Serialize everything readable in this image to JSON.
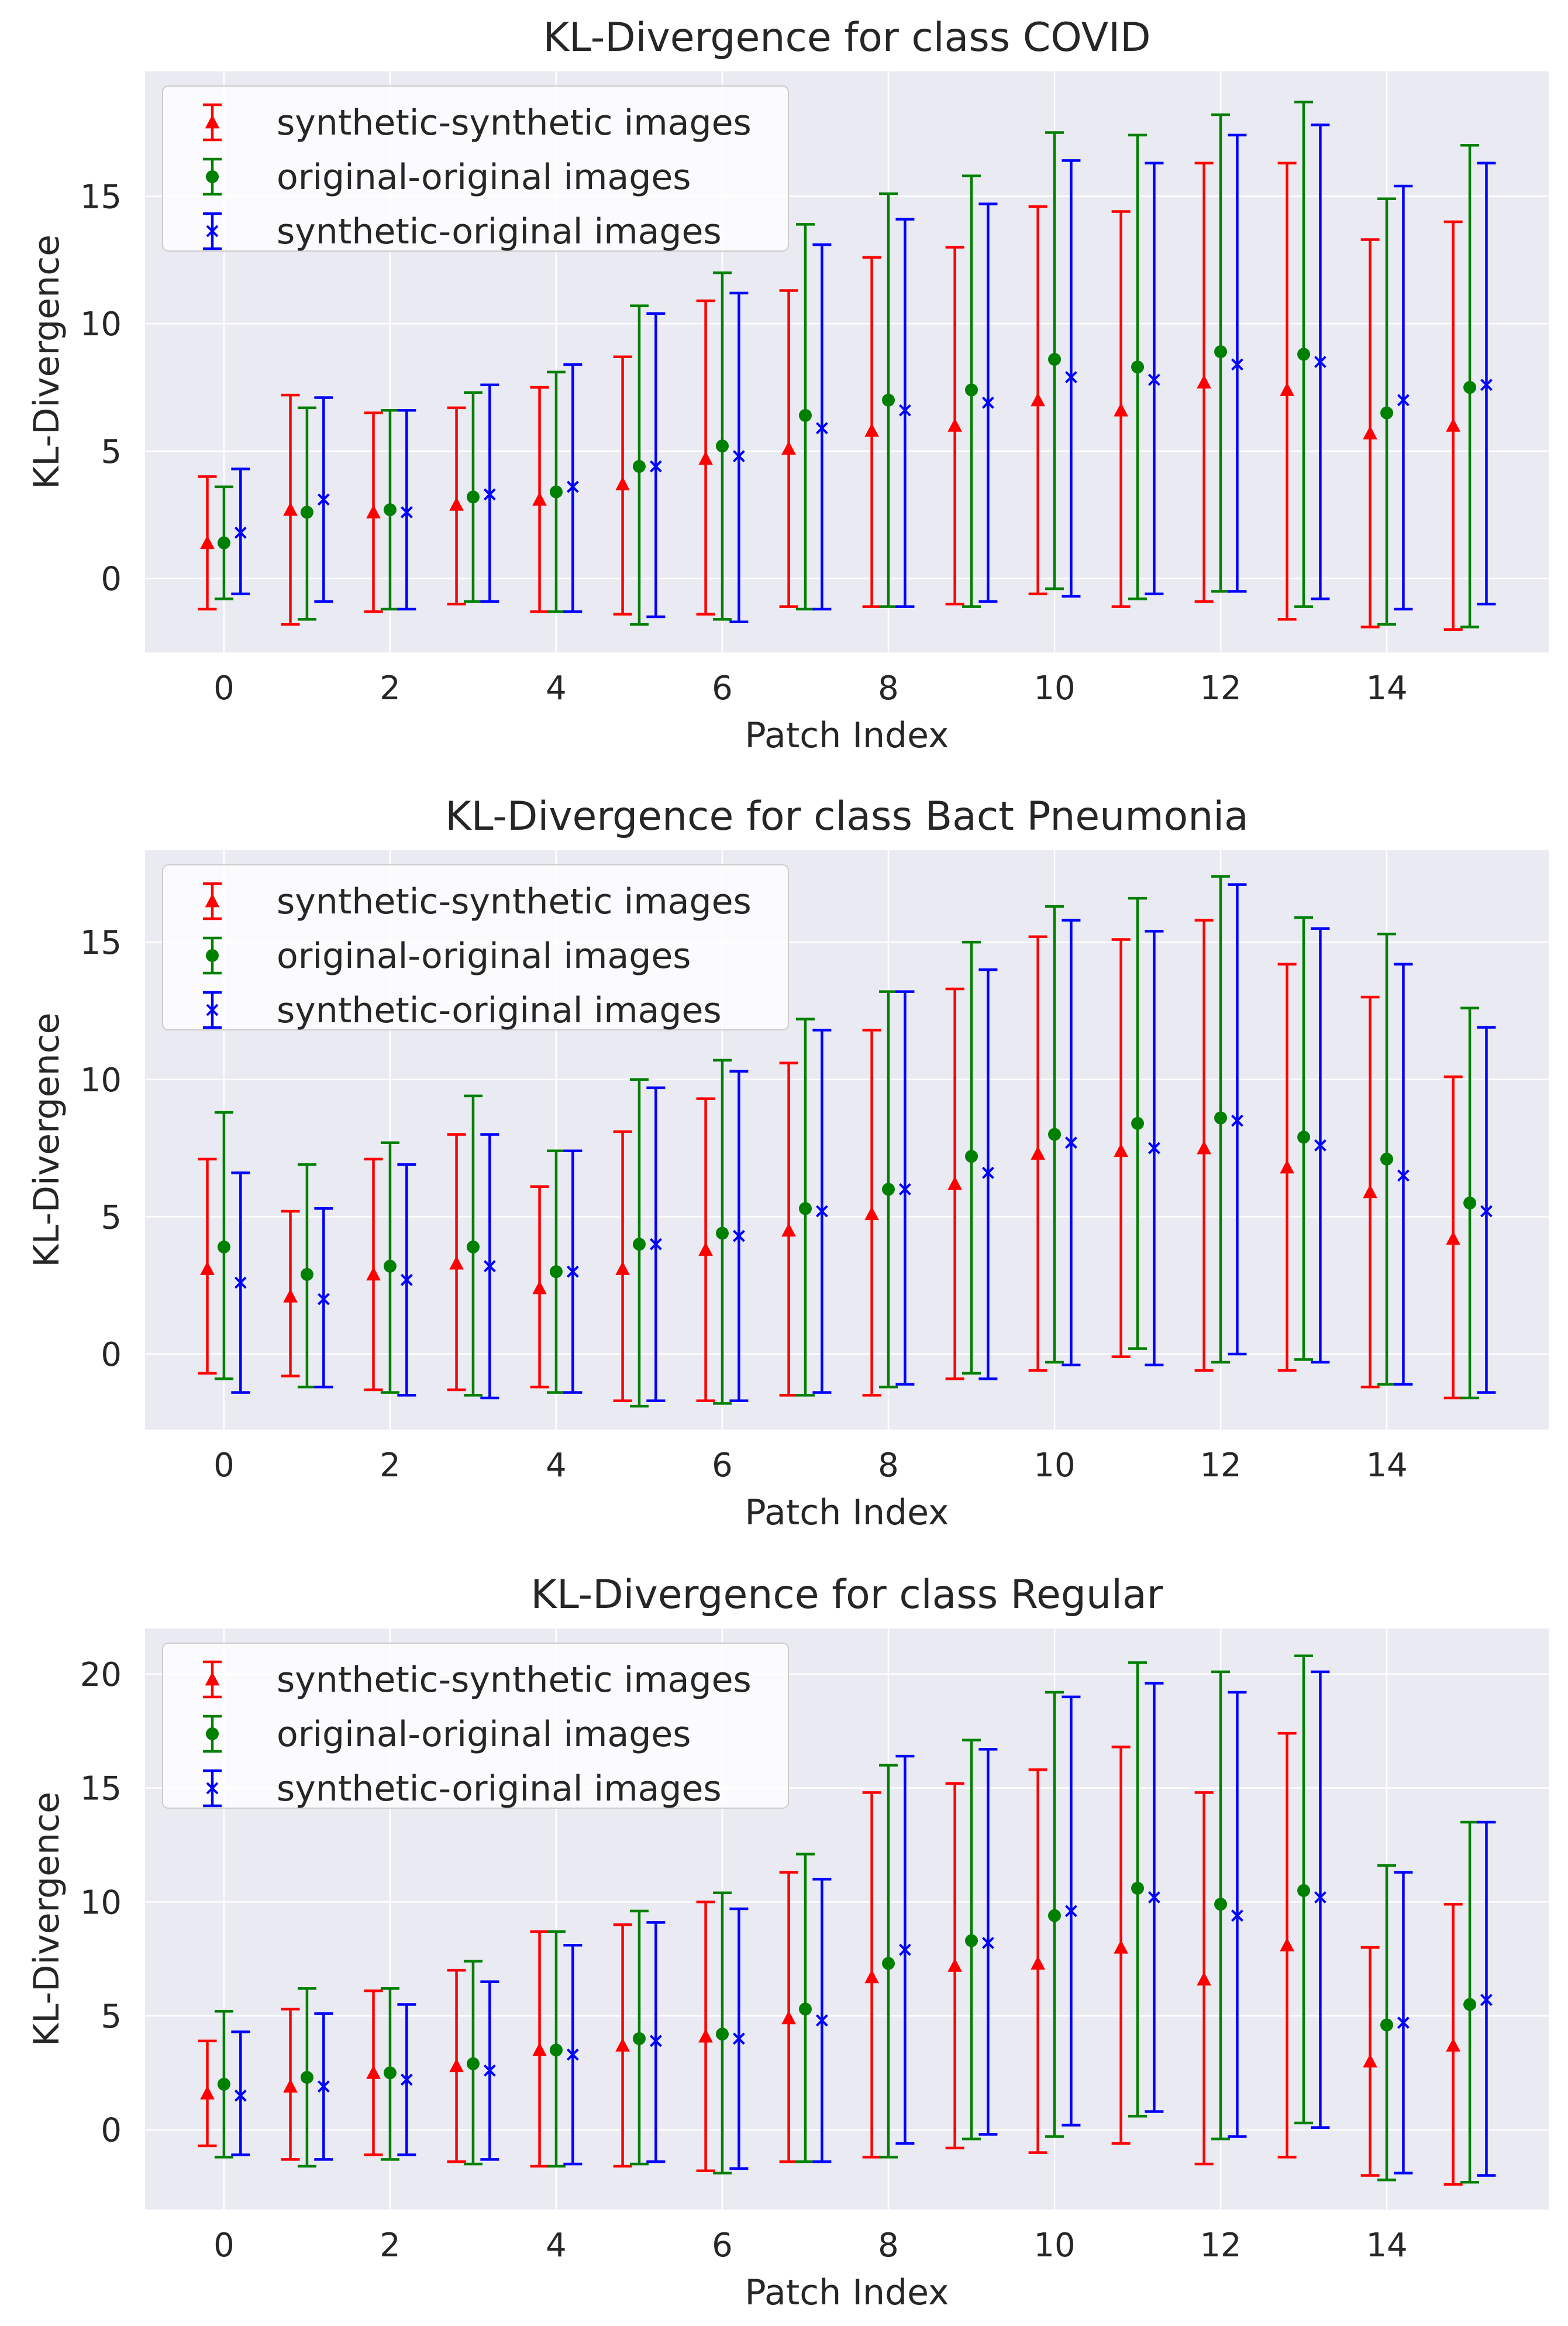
{
  "figure": {
    "series_names": [
      "synthetic-synthetic images",
      "original-original images",
      "synthetic-original images"
    ],
    "series_colors": [
      "#ff0000",
      "#008000",
      "#0000ff"
    ],
    "series_markers": [
      "triangle",
      "circle",
      "x"
    ],
    "background_color": "#eaeaf2",
    "grid_color": "#ffffff"
  },
  "chart_data": [
    {
      "type": "errorbar",
      "title": "KL-Divergence for class COVID",
      "xlabel": "Patch Index",
      "ylabel": "KL-Divergence",
      "x": [
        0,
        1,
        2,
        3,
        4,
        5,
        6,
        7,
        8,
        9,
        10,
        11,
        12,
        13,
        14,
        15
      ],
      "xticks": [
        0,
        2,
        4,
        6,
        8,
        10,
        12,
        14
      ],
      "yticks": [
        0,
        5,
        10,
        15
      ],
      "xlim": [
        -0.95,
        15.95
      ],
      "ylim": [
        -2.9,
        19.9
      ],
      "grid": true,
      "legend": "top-left",
      "series": [
        {
          "name": "synthetic-synthetic images",
          "mean": [
            1.4,
            2.7,
            2.6,
            2.9,
            3.1,
            3.7,
            4.7,
            5.1,
            5.8,
            6.0,
            7.0,
            6.6,
            7.7,
            7.4,
            5.7,
            6.0
          ],
          "lower": [
            -1.2,
            -1.8,
            -1.3,
            -1.0,
            -1.3,
            -1.4,
            -1.4,
            -1.1,
            -1.1,
            -1.0,
            -0.6,
            -1.1,
            -0.9,
            -1.6,
            -1.9,
            -2.0
          ],
          "upper": [
            4.0,
            7.2,
            6.5,
            6.7,
            7.5,
            8.7,
            10.9,
            11.3,
            12.6,
            13.0,
            14.6,
            14.4,
            16.3,
            16.3,
            13.3,
            14.0
          ]
        },
        {
          "name": "original-original images",
          "mean": [
            1.4,
            2.6,
            2.7,
            3.2,
            3.4,
            4.4,
            5.2,
            6.4,
            7.0,
            7.4,
            8.6,
            8.3,
            8.9,
            8.8,
            6.5,
            7.5
          ],
          "lower": [
            -0.8,
            -1.6,
            -1.2,
            -0.9,
            -1.3,
            -1.8,
            -1.6,
            -1.2,
            -1.1,
            -1.1,
            -0.4,
            -0.8,
            -0.5,
            -1.1,
            -1.8,
            -1.9
          ],
          "upper": [
            3.6,
            6.7,
            6.6,
            7.3,
            8.1,
            10.7,
            12.0,
            13.9,
            15.1,
            15.8,
            17.5,
            17.4,
            18.2,
            18.7,
            14.9,
            17.0
          ]
        },
        {
          "name": "synthetic-original images",
          "mean": [
            1.8,
            3.1,
            2.6,
            3.3,
            3.6,
            4.4,
            4.8,
            5.9,
            6.6,
            6.9,
            7.9,
            7.8,
            8.4,
            8.5,
            7.0,
            7.6
          ],
          "lower": [
            -0.6,
            -0.9,
            -1.2,
            -0.9,
            -1.3,
            -1.5,
            -1.7,
            -1.2,
            -1.1,
            -0.9,
            -0.7,
            -0.6,
            -0.5,
            -0.8,
            -1.2,
            -1.0
          ],
          "upper": [
            4.3,
            7.1,
            6.6,
            7.6,
            8.4,
            10.4,
            11.2,
            13.1,
            14.1,
            14.7,
            16.4,
            16.3,
            17.4,
            17.8,
            15.4,
            16.3
          ]
        }
      ]
    },
    {
      "type": "errorbar",
      "title": "KL-Divergence for class Bact Pneumonia",
      "xlabel": "Patch Index",
      "ylabel": "KL-Divergence",
      "x": [
        0,
        1,
        2,
        3,
        4,
        5,
        6,
        7,
        8,
        9,
        10,
        11,
        12,
        13,
        14,
        15
      ],
      "xticks": [
        0,
        2,
        4,
        6,
        8,
        10,
        12,
        14
      ],
      "yticks": [
        0,
        5,
        10,
        15
      ],
      "xlim": [
        -0.95,
        15.95
      ],
      "ylim": [
        -2.75,
        18.35
      ],
      "grid": true,
      "legend": "top-left",
      "series": [
        {
          "name": "synthetic-synthetic images",
          "mean": [
            3.1,
            2.1,
            2.9,
            3.3,
            2.4,
            3.1,
            3.8,
            4.5,
            5.1,
            6.2,
            7.3,
            7.4,
            7.5,
            6.8,
            5.9,
            4.2
          ],
          "lower": [
            -0.7,
            -0.8,
            -1.3,
            -1.3,
            -1.2,
            -1.7,
            -1.7,
            -1.5,
            -1.5,
            -0.9,
            -0.6,
            -0.1,
            -0.6,
            -0.6,
            -1.2,
            -1.6
          ],
          "upper": [
            7.1,
            5.2,
            7.1,
            8.0,
            6.1,
            8.1,
            9.3,
            10.6,
            11.8,
            13.3,
            15.2,
            15.1,
            15.8,
            14.2,
            13.0,
            10.1
          ]
        },
        {
          "name": "original-original images",
          "mean": [
            3.9,
            2.9,
            3.2,
            3.9,
            3.0,
            4.0,
            4.4,
            5.3,
            6.0,
            7.2,
            8.0,
            8.4,
            8.6,
            7.9,
            7.1,
            5.5
          ],
          "lower": [
            -0.9,
            -1.2,
            -1.4,
            -1.5,
            -1.4,
            -1.9,
            -1.8,
            -1.5,
            -1.2,
            -0.7,
            -0.3,
            0.2,
            -0.3,
            -0.2,
            -1.1,
            -1.6
          ],
          "upper": [
            8.8,
            6.9,
            7.7,
            9.4,
            7.4,
            10.0,
            10.7,
            12.2,
            13.2,
            15.0,
            16.3,
            16.6,
            17.4,
            15.9,
            15.3,
            12.6
          ]
        },
        {
          "name": "synthetic-original images",
          "mean": [
            2.6,
            2.0,
            2.7,
            3.2,
            3.0,
            4.0,
            4.3,
            5.2,
            6.0,
            6.6,
            7.7,
            7.5,
            8.5,
            7.6,
            6.5,
            5.2
          ],
          "lower": [
            -1.4,
            -1.2,
            -1.5,
            -1.6,
            -1.4,
            -1.7,
            -1.7,
            -1.4,
            -1.1,
            -0.9,
            -0.4,
            -0.4,
            0.0,
            -0.3,
            -1.1,
            -1.4
          ],
          "upper": [
            6.6,
            5.3,
            6.9,
            8.0,
            7.4,
            9.7,
            10.3,
            11.8,
            13.2,
            14.0,
            15.8,
            15.4,
            17.1,
            15.5,
            14.2,
            11.9
          ]
        }
      ]
    },
    {
      "type": "errorbar",
      "title": "KL-Divergence for class Regular",
      "xlabel": "Patch Index",
      "ylabel": "KL-Divergence",
      "x": [
        0,
        1,
        2,
        3,
        4,
        5,
        6,
        7,
        8,
        9,
        10,
        11,
        12,
        13,
        14,
        15
      ],
      "xticks": [
        0,
        2,
        4,
        6,
        8,
        10,
        12,
        14
      ],
      "yticks": [
        0,
        5,
        10,
        15,
        20
      ],
      "xlim": [
        -0.95,
        15.95
      ],
      "ylim": [
        -3.5,
        22.0
      ],
      "grid": true,
      "legend": "top-left",
      "series": [
        {
          "name": "synthetic-synthetic images",
          "mean": [
            1.6,
            1.9,
            2.5,
            2.8,
            3.5,
            3.7,
            4.1,
            4.9,
            6.7,
            7.2,
            7.3,
            8.0,
            6.6,
            8.1,
            3.0,
            3.7
          ],
          "lower": [
            -0.7,
            -1.3,
            -1.1,
            -1.4,
            -1.6,
            -1.6,
            -1.8,
            -1.4,
            -1.2,
            -0.8,
            -1.0,
            -0.6,
            -1.5,
            -1.2,
            -2.0,
            -2.4
          ],
          "upper": [
            3.9,
            5.3,
            6.1,
            7.0,
            8.7,
            9.0,
            10.0,
            11.3,
            14.8,
            15.2,
            15.8,
            16.8,
            14.8,
            17.4,
            8.0,
            9.9
          ]
        },
        {
          "name": "original-original images",
          "mean": [
            2.0,
            2.3,
            2.5,
            2.9,
            3.5,
            4.0,
            4.2,
            5.3,
            7.3,
            8.3,
            9.4,
            10.6,
            9.9,
            10.5,
            4.6,
            5.5
          ],
          "lower": [
            -1.2,
            -1.6,
            -1.3,
            -1.5,
            -1.6,
            -1.5,
            -1.9,
            -1.4,
            -1.2,
            -0.4,
            -0.3,
            0.6,
            -0.4,
            0.3,
            -2.2,
            -2.3
          ],
          "upper": [
            5.2,
            6.2,
            6.2,
            7.4,
            8.7,
            9.6,
            10.4,
            12.1,
            16.0,
            17.1,
            19.2,
            20.5,
            20.1,
            20.8,
            11.6,
            13.5
          ]
        },
        {
          "name": "synthetic-original images",
          "mean": [
            1.5,
            1.9,
            2.2,
            2.6,
            3.3,
            3.9,
            4.0,
            4.8,
            7.9,
            8.2,
            9.6,
            10.2,
            9.4,
            10.2,
            4.7,
            5.7
          ],
          "lower": [
            -1.1,
            -1.3,
            -1.1,
            -1.3,
            -1.5,
            -1.4,
            -1.7,
            -1.4,
            -0.6,
            -0.2,
            0.2,
            0.8,
            -0.3,
            0.1,
            -1.9,
            -2.0
          ],
          "upper": [
            4.3,
            5.1,
            5.5,
            6.5,
            8.1,
            9.1,
            9.7,
            11.0,
            16.4,
            16.7,
            19.0,
            19.6,
            19.2,
            20.1,
            11.3,
            13.5
          ]
        }
      ]
    }
  ]
}
